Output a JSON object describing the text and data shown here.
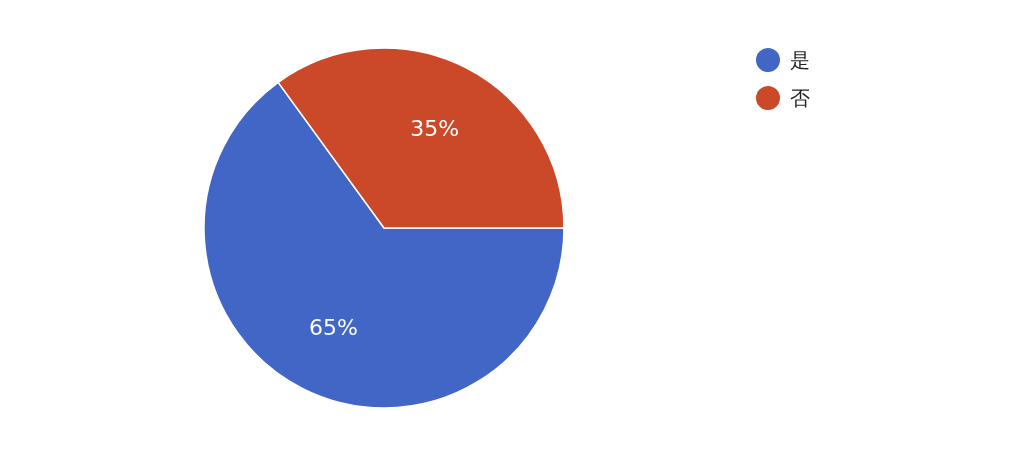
{
  "chart_data": {
    "type": "pie",
    "categories": [
      "是",
      "否"
    ],
    "values": [
      65,
      35
    ],
    "colors": [
      "#4266c6",
      "#cb4828"
    ],
    "value_labels": [
      "65%",
      "35%"
    ],
    "legend": "top right"
  }
}
